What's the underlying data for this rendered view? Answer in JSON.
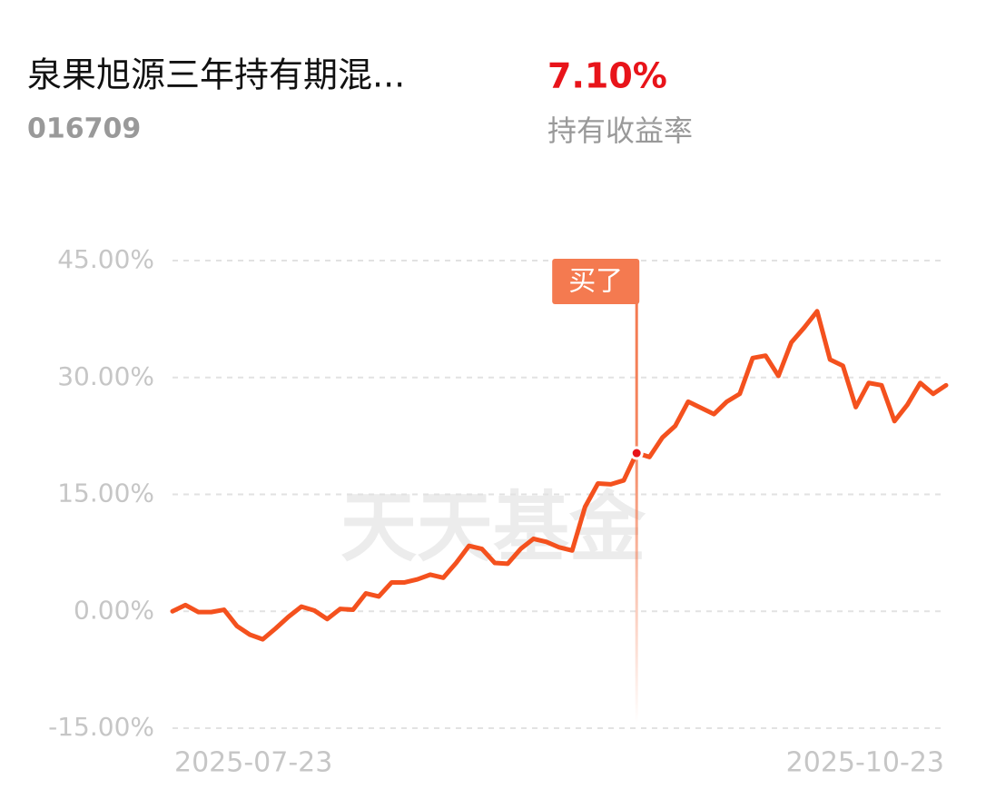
{
  "header": {
    "title": "泉果旭源三年持有期混...",
    "code": "016709",
    "return": "7.10%",
    "return_label": "持有收益率"
  },
  "chart_data": {
    "type": "line",
    "watermark": "天天基金",
    "categories": [
      "2025-07-23",
      null,
      null,
      null,
      null,
      null,
      null,
      null,
      null,
      null,
      null,
      null,
      null,
      null,
      null,
      null,
      null,
      null,
      null,
      null,
      null,
      null,
      null,
      null,
      null,
      null,
      null,
      null,
      null,
      null,
      null,
      null,
      null,
      null,
      null,
      null,
      null,
      null,
      null,
      null,
      null,
      null,
      null,
      null,
      null,
      null,
      null,
      null,
      null,
      null,
      null,
      null,
      null,
      null,
      null,
      null,
      null,
      null,
      null,
      null,
      "2025-10-23"
    ],
    "series": [
      {
        "name": "持有收益率",
        "color": "#f4511e",
        "values": [
          0,
          0.8,
          -0.1,
          -0.1,
          0.2,
          -1.9,
          -3.0,
          -3.6,
          -2.2,
          -0.7,
          0.6,
          0.1,
          -1.0,
          0.3,
          0.2,
          2.3,
          1.9,
          3.7,
          3.7,
          4.1,
          4.7,
          4.3,
          6.2,
          8.4,
          8.0,
          6.2,
          6.1,
          8.0,
          9.3,
          8.9,
          8.2,
          7.8,
          13.4,
          16.4,
          16.3,
          16.8,
          20.3,
          19.8,
          22.3,
          23.8,
          26.9,
          26.1,
          25.3,
          26.9,
          27.9,
          32.5,
          32.8,
          30.2,
          34.5,
          36.4,
          38.5,
          32.3,
          31.5,
          26.2,
          29.3,
          29.0,
          24.4,
          26.5,
          29.3,
          27.9,
          29.0
        ]
      }
    ],
    "ylim": [
      -15,
      45
    ],
    "yticks": [
      {
        "value": -15,
        "label": "-15.00%"
      },
      {
        "value": 0,
        "label": "0.00%"
      },
      {
        "value": 15,
        "label": "15.00%"
      },
      {
        "value": 30,
        "label": "30.00%"
      },
      {
        "value": 45,
        "label": "45.00%"
      }
    ],
    "grid": true,
    "annotation": {
      "text": "买了",
      "point": 36,
      "color": "#f47a50"
    }
  }
}
